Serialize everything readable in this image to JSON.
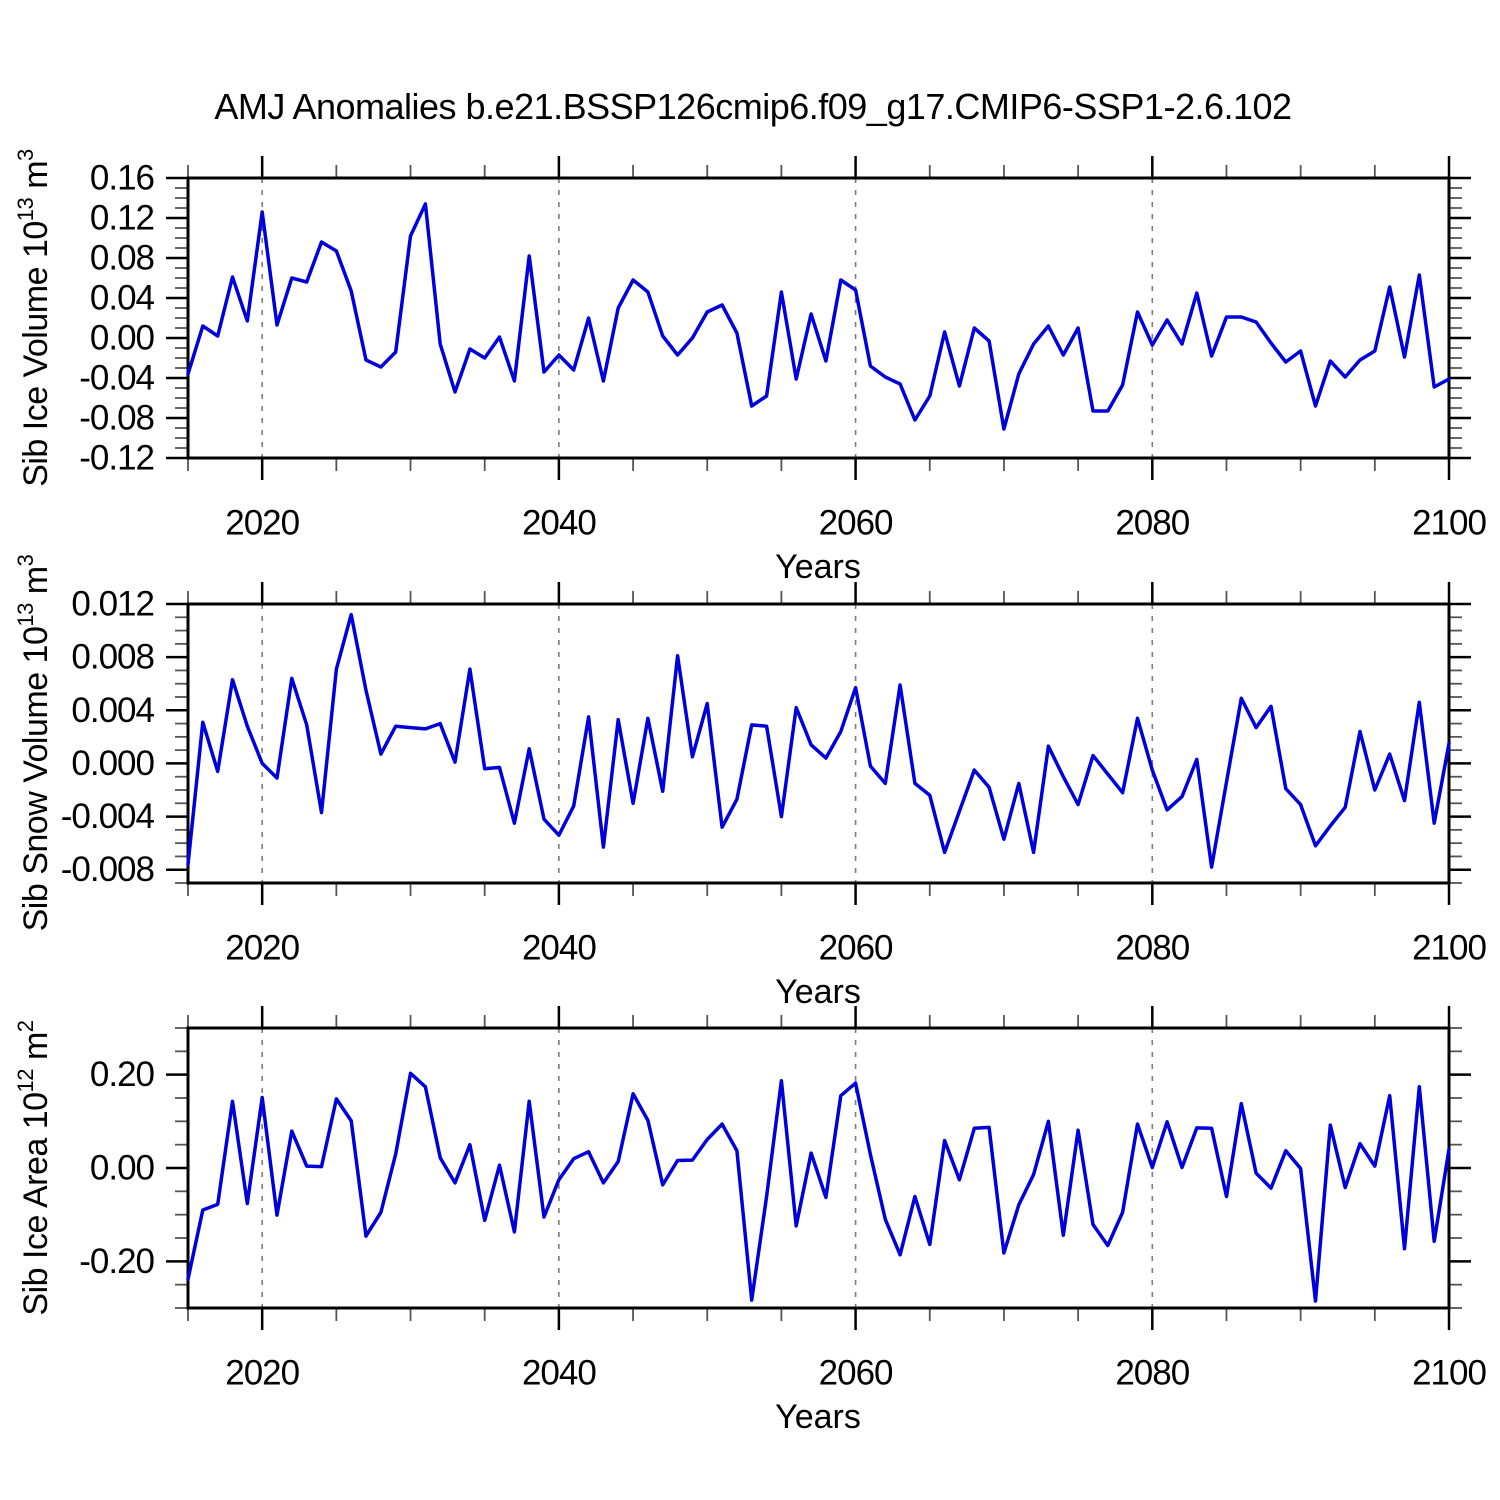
{
  "title": "AMJ Anomalies b.e21.BSSP126cmip6.f09_g17.CMIP6-SSP1-2.6.102",
  "colors": {
    "series": "#0000dd",
    "axis": "#000000",
    "grid": "#7d7d7d",
    "background": "#ffffff"
  },
  "chart_data": [
    {
      "type": "line",
      "title": "",
      "xlabel": "Years",
      "ylabel": "Sib Ice Volume 10^13 m^3",
      "ylabel_parts": {
        "text": "Sib Ice Volume 10",
        "exp": "13",
        "unit": " m",
        "unit_exp": "3"
      },
      "x_start": 2015,
      "x_step": 1,
      "xlim": [
        2015,
        2100
      ],
      "x_ticks": [
        2020,
        2040,
        2060,
        2080,
        2100
      ],
      "x_tick_labels": [
        "2020",
        "2040",
        "2060",
        "2080",
        "2100"
      ],
      "x_minor_step": 5,
      "grid_years": [
        2020,
        2040,
        2060,
        2080
      ],
      "ylim": [
        -0.12,
        0.16
      ],
      "y_ticks": [
        0.16,
        0.12,
        0.08,
        0.04,
        0.0,
        -0.04,
        -0.08,
        -0.12
      ],
      "y_tick_labels": [
        "0.16",
        "0.12",
        "0.08",
        "0.04",
        "0.00",
        "-0.04",
        "-0.08",
        "-0.12"
      ],
      "y_major_step": 0.04,
      "y_minor_step": 0.01,
      "grid": "x-dashed",
      "legend": "none",
      "values": [
        -0.036,
        0.012,
        0.002,
        0.061,
        0.017,
        0.126,
        0.013,
        0.06,
        0.056,
        0.096,
        0.087,
        0.047,
        -0.022,
        -0.029,
        -0.014,
        0.102,
        0.134,
        -0.006,
        -0.054,
        -0.011,
        -0.02,
        0.001,
        -0.043,
        0.082,
        -0.034,
        -0.017,
        -0.032,
        0.02,
        -0.043,
        0.03,
        0.058,
        0.046,
        0.002,
        -0.017,
        0.0,
        0.026,
        0.033,
        0.005,
        -0.068,
        -0.058,
        0.046,
        -0.041,
        0.024,
        -0.023,
        0.058,
        0.048,
        -0.028,
        -0.039,
        -0.046,
        -0.082,
        -0.058,
        0.006,
        -0.048,
        0.01,
        -0.003,
        -0.091,
        -0.036,
        -0.006,
        0.012,
        -0.017,
        0.01,
        -0.073,
        -0.073,
        -0.047,
        0.026,
        -0.007,
        0.018,
        -0.006,
        0.045,
        -0.018,
        0.021,
        0.021,
        0.016,
        -0.005,
        -0.024,
        -0.013,
        -0.068,
        -0.023,
        -0.039,
        -0.022,
        -0.013,
        0.051,
        -0.019,
        0.063,
        -0.049,
        -0.041
      ]
    },
    {
      "type": "line",
      "title": "",
      "xlabel": "Years",
      "ylabel": "Sib Snow Volume 10^13 m^3",
      "ylabel_parts": {
        "text": "Sib Snow Volume 10",
        "exp": "13",
        "unit": " m",
        "unit_exp": "3"
      },
      "x_start": 2015,
      "x_step": 1,
      "xlim": [
        2015,
        2100
      ],
      "x_ticks": [
        2020,
        2040,
        2060,
        2080,
        2100
      ],
      "x_tick_labels": [
        "2020",
        "2040",
        "2060",
        "2080",
        "2100"
      ],
      "x_minor_step": 5,
      "grid_years": [
        2020,
        2040,
        2060,
        2080
      ],
      "ylim": [
        -0.009,
        0.012
      ],
      "y_ticks": [
        0.012,
        0.008,
        0.004,
        0.0,
        -0.004,
        -0.008
      ],
      "y_tick_labels": [
        "0.012",
        "0.008",
        "0.004",
        "0.000",
        "-0.004",
        "-0.008"
      ],
      "y_major_step": 0.004,
      "y_minor_step": 0.001,
      "grid": "x-dashed",
      "legend": "none",
      "values": [
        -0.0076,
        0.0031,
        -0.0006,
        0.0063,
        0.0028,
        0.0,
        -0.0011,
        0.0064,
        0.0029,
        -0.0037,
        0.0071,
        0.0112,
        0.0055,
        0.0007,
        0.0028,
        0.0027,
        0.0026,
        0.003,
        0.0001,
        0.0071,
        -0.0004,
        -0.0003,
        -0.0045,
        0.0011,
        -0.0042,
        -0.0054,
        -0.0032,
        0.0035,
        -0.0063,
        0.0033,
        -0.003,
        0.0034,
        -0.0021,
        0.0081,
        0.0005,
        0.0045,
        -0.0048,
        -0.0027,
        0.0029,
        0.0028,
        -0.004,
        0.0042,
        0.0014,
        0.0004,
        0.0024,
        0.0057,
        -0.0002,
        -0.0015,
        0.0059,
        -0.0015,
        -0.0024,
        -0.0067,
        -0.0036,
        -0.0005,
        -0.0018,
        -0.0057,
        -0.0015,
        -0.0067,
        0.0013,
        -0.001,
        -0.0031,
        0.0006,
        -0.0008,
        -0.0022,
        0.0034,
        -0.0005,
        -0.0035,
        -0.0025,
        0.0003,
        -0.0078,
        -0.0014,
        0.0049,
        0.0027,
        0.0043,
        -0.0019,
        -0.0031,
        -0.0062,
        -0.0047,
        -0.0033,
        0.0024,
        -0.002,
        0.0007,
        -0.0028,
        0.0046,
        -0.0045,
        0.0015
      ]
    },
    {
      "type": "line",
      "title": "",
      "xlabel": "Years",
      "ylabel": "Sib Ice Area 10^12 m^2",
      "ylabel_parts": {
        "text": "Sib Ice Area 10",
        "exp": "12",
        "unit": " m",
        "unit_exp": "2"
      },
      "x_start": 2015,
      "x_step": 1,
      "xlim": [
        2015,
        2100
      ],
      "x_ticks": [
        2020,
        2040,
        2060,
        2080,
        2100
      ],
      "x_tick_labels": [
        "2020",
        "2040",
        "2060",
        "2080",
        "2100"
      ],
      "x_minor_step": 5,
      "grid_years": [
        2020,
        2040,
        2060,
        2080
      ],
      "ylim": [
        -0.3,
        0.3
      ],
      "y_ticks": [
        0.2,
        0.0,
        -0.2
      ],
      "y_tick_labels": [
        "0.20",
        "0.00",
        "-0.20"
      ],
      "y_major_step": 0.2,
      "y_minor_step": 0.05,
      "grid": "x-dashed",
      "legend": "none",
      "values": [
        -0.238,
        -0.09,
        -0.078,
        0.143,
        -0.076,
        0.151,
        -0.101,
        0.079,
        0.004,
        0.003,
        0.148,
        0.101,
        -0.146,
        -0.095,
        0.03,
        0.203,
        0.174,
        0.022,
        -0.032,
        0.05,
        -0.112,
        0.006,
        -0.137,
        0.143,
        -0.105,
        -0.025,
        0.02,
        0.035,
        -0.032,
        0.014,
        0.159,
        0.102,
        -0.036,
        0.016,
        0.017,
        0.061,
        0.094,
        0.037,
        -0.283,
        -0.061,
        0.187,
        -0.124,
        0.032,
        -0.063,
        0.155,
        0.182,
        0.029,
        -0.11,
        -0.186,
        -0.061,
        -0.164,
        0.059,
        -0.025,
        0.085,
        0.087,
        -0.182,
        -0.079,
        -0.014,
        0.1,
        -0.144,
        0.081,
        -0.121,
        -0.166,
        -0.095,
        0.094,
        0.001,
        0.099,
        0.001,
        0.086,
        0.085,
        -0.061,
        0.138,
        -0.011,
        -0.043,
        0.037,
        -0.001,
        -0.285,
        0.092,
        -0.042,
        0.052,
        0.004,
        0.155,
        -0.173,
        0.174,
        -0.157,
        0.04
      ]
    }
  ]
}
